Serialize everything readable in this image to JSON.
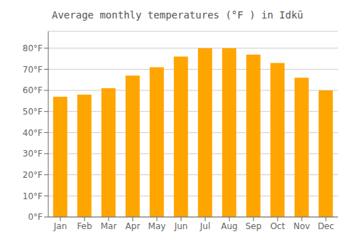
{
  "chart_data": {
    "type": "bar",
    "title": "Average monthly temperatures (°F ) in Idkū",
    "categories": [
      "Jan",
      "Feb",
      "Mar",
      "Apr",
      "May",
      "Jun",
      "Jul",
      "Aug",
      "Sep",
      "Oct",
      "Nov",
      "Dec"
    ],
    "values": [
      57,
      58,
      61,
      67,
      71,
      76,
      80,
      80,
      77,
      73,
      66,
      60
    ],
    "color": "#FFA500",
    "ylim": [
      0,
      88
    ],
    "yticks": [
      {
        "value": 0,
        "label": "0°F"
      },
      {
        "value": 10,
        "label": "10°F"
      },
      {
        "value": 20,
        "label": "20°F"
      },
      {
        "value": 30,
        "label": "30°F"
      },
      {
        "value": 40,
        "label": "40°F"
      },
      {
        "value": 50,
        "label": "50°F"
      },
      {
        "value": 60,
        "label": "60°F"
      },
      {
        "value": 70,
        "label": "70°F"
      },
      {
        "value": 80,
        "label": "80°F"
      }
    ],
    "grid": true
  }
}
